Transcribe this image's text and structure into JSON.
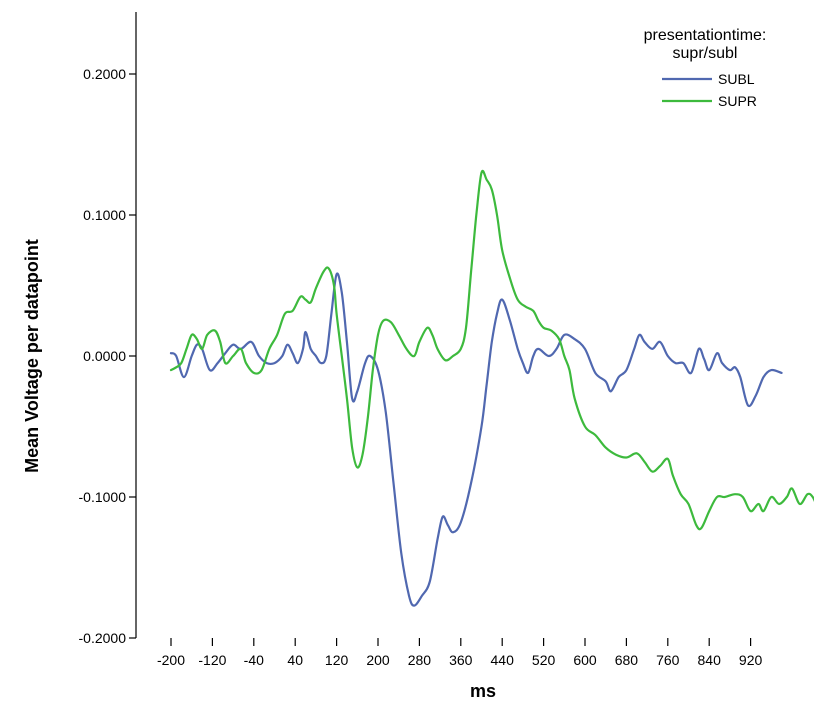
{
  "chart_data": {
    "type": "line",
    "xlabel": "ms",
    "ylabel": "Mean Voltage per datapoint",
    "xlim": [
      -200,
      1000
    ],
    "ylim": [
      -0.2,
      0.2
    ],
    "x_ticks": [
      "-200",
      "-120",
      "-40",
      "40",
      "120",
      "200",
      "280",
      "360",
      "440",
      "520",
      "600",
      "680",
      "760",
      "840",
      "920"
    ],
    "x_tick_values": [
      -200,
      -120,
      -40,
      40,
      120,
      200,
      280,
      360,
      440,
      520,
      600,
      680,
      760,
      840,
      920
    ],
    "y_ticks": [
      "-0.2000",
      "-0.1000",
      "0.0000",
      "0.1000",
      "0.2000"
    ],
    "y_tick_values": [
      -0.2,
      -0.1,
      0.0,
      0.1,
      0.2
    ],
    "grid": false,
    "legend": {
      "title": "presentationtime: supr/subl",
      "title_lines": [
        "presentationtime:",
        "supr/subl"
      ],
      "position": "top-right",
      "entries": [
        "SUBL",
        "SUPR"
      ]
    },
    "series": [
      {
        "name": "SUBL",
        "color": "#5068b0",
        "points": [
          [
            -200,
            0.002
          ],
          [
            -190,
            0.0
          ],
          [
            -175,
            -0.015
          ],
          [
            -160,
            0.0
          ],
          [
            -150,
            0.008
          ],
          [
            -140,
            0.005
          ],
          [
            -125,
            -0.01
          ],
          [
            -110,
            -0.005
          ],
          [
            -95,
            0.002
          ],
          [
            -80,
            0.008
          ],
          [
            -65,
            0.005
          ],
          [
            -45,
            0.01
          ],
          [
            -30,
            0.0
          ],
          [
            -15,
            -0.005
          ],
          [
            0,
            -0.005
          ],
          [
            15,
            0.0
          ],
          [
            25,
            0.008
          ],
          [
            35,
            0.002
          ],
          [
            45,
            -0.005
          ],
          [
            55,
            0.005
          ],
          [
            60,
            0.017
          ],
          [
            70,
            0.005
          ],
          [
            80,
            0.0
          ],
          [
            90,
            -0.005
          ],
          [
            100,
            0.0
          ],
          [
            110,
            0.03
          ],
          [
            120,
            0.058
          ],
          [
            130,
            0.045
          ],
          [
            140,
            0.01
          ],
          [
            150,
            -0.03
          ],
          [
            160,
            -0.025
          ],
          [
            175,
            -0.005
          ],
          [
            185,
            0.0
          ],
          [
            200,
            -0.01
          ],
          [
            215,
            -0.04
          ],
          [
            230,
            -0.09
          ],
          [
            245,
            -0.14
          ],
          [
            260,
            -0.17
          ],
          [
            270,
            -0.177
          ],
          [
            285,
            -0.17
          ],
          [
            300,
            -0.16
          ],
          [
            315,
            -0.13
          ],
          [
            325,
            -0.114
          ],
          [
            335,
            -0.12
          ],
          [
            345,
            -0.125
          ],
          [
            360,
            -0.118
          ],
          [
            380,
            -0.09
          ],
          [
            400,
            -0.05
          ],
          [
            410,
            -0.02
          ],
          [
            420,
            0.01
          ],
          [
            430,
            0.03
          ],
          [
            440,
            0.04
          ],
          [
            455,
            0.025
          ],
          [
            470,
            0.005
          ],
          [
            480,
            -0.005
          ],
          [
            490,
            -0.012
          ],
          [
            500,
            0.0
          ],
          [
            510,
            0.005
          ],
          [
            530,
            0.0
          ],
          [
            545,
            0.005
          ],
          [
            560,
            0.015
          ],
          [
            580,
            0.012
          ],
          [
            600,
            0.005
          ],
          [
            620,
            -0.012
          ],
          [
            640,
            -0.018
          ],
          [
            650,
            -0.025
          ],
          [
            665,
            -0.015
          ],
          [
            680,
            -0.01
          ],
          [
            695,
            0.005
          ],
          [
            705,
            0.015
          ],
          [
            715,
            0.01
          ],
          [
            730,
            0.005
          ],
          [
            745,
            0.01
          ],
          [
            760,
            0.0
          ],
          [
            775,
            -0.005
          ],
          [
            790,
            -0.005
          ],
          [
            805,
            -0.012
          ],
          [
            820,
            0.005
          ],
          [
            830,
            -0.002
          ],
          [
            840,
            -0.01
          ],
          [
            855,
            0.002
          ],
          [
            865,
            -0.005
          ],
          [
            880,
            -0.01
          ],
          [
            890,
            -0.008
          ],
          [
            900,
            -0.015
          ],
          [
            915,
            -0.035
          ],
          [
            930,
            -0.028
          ],
          [
            945,
            -0.015
          ],
          [
            960,
            -0.01
          ],
          [
            980,
            -0.012
          ]
        ]
      },
      {
        "name": "SUPR",
        "color": "#3dba3d",
        "points": [
          [
            -200,
            -0.01
          ],
          [
            -190,
            -0.008
          ],
          [
            -180,
            -0.005
          ],
          [
            -170,
            0.005
          ],
          [
            -160,
            0.015
          ],
          [
            -150,
            0.012
          ],
          [
            -140,
            0.005
          ],
          [
            -130,
            0.015
          ],
          [
            -115,
            0.018
          ],
          [
            -105,
            0.01
          ],
          [
            -95,
            -0.005
          ],
          [
            -80,
            0.0
          ],
          [
            -65,
            0.005
          ],
          [
            -55,
            -0.005
          ],
          [
            -40,
            -0.012
          ],
          [
            -25,
            -0.01
          ],
          [
            -10,
            0.005
          ],
          [
            5,
            0.015
          ],
          [
            20,
            0.03
          ],
          [
            35,
            0.032
          ],
          [
            50,
            0.042
          ],
          [
            60,
            0.04
          ],
          [
            70,
            0.038
          ],
          [
            80,
            0.048
          ],
          [
            95,
            0.06
          ],
          [
            105,
            0.062
          ],
          [
            115,
            0.05
          ],
          [
            120,
            0.03
          ],
          [
            130,
            0.0
          ],
          [
            140,
            -0.03
          ],
          [
            150,
            -0.065
          ],
          [
            160,
            -0.079
          ],
          [
            170,
            -0.07
          ],
          [
            180,
            -0.045
          ],
          [
            190,
            -0.01
          ],
          [
            200,
            0.015
          ],
          [
            210,
            0.025
          ],
          [
            225,
            0.024
          ],
          [
            240,
            0.015
          ],
          [
            255,
            0.005
          ],
          [
            270,
            0.0
          ],
          [
            280,
            0.01
          ],
          [
            295,
            0.02
          ],
          [
            305,
            0.015
          ],
          [
            315,
            0.005
          ],
          [
            330,
            -0.003
          ],
          [
            345,
            0.0
          ],
          [
            360,
            0.005
          ],
          [
            370,
            0.02
          ],
          [
            380,
            0.06
          ],
          [
            390,
            0.1
          ],
          [
            400,
            0.13
          ],
          [
            410,
            0.125
          ],
          [
            420,
            0.118
          ],
          [
            430,
            0.1
          ],
          [
            440,
            0.075
          ],
          [
            455,
            0.055
          ],
          [
            470,
            0.04
          ],
          [
            485,
            0.035
          ],
          [
            500,
            0.032
          ],
          [
            510,
            0.025
          ],
          [
            520,
            0.02
          ],
          [
            535,
            0.018
          ],
          [
            550,
            0.012
          ],
          [
            560,
            0.0
          ],
          [
            570,
            -0.01
          ],
          [
            580,
            -0.03
          ],
          [
            600,
            -0.05
          ],
          [
            620,
            -0.056
          ],
          [
            640,
            -0.065
          ],
          [
            660,
            -0.07
          ],
          [
            680,
            -0.072
          ],
          [
            700,
            -0.069
          ],
          [
            715,
            -0.075
          ],
          [
            730,
            -0.082
          ],
          [
            745,
            -0.078
          ],
          [
            760,
            -0.073
          ],
          [
            770,
            -0.085
          ],
          [
            785,
            -0.098
          ],
          [
            800,
            -0.105
          ],
          [
            815,
            -0.12
          ],
          [
            825,
            -0.122
          ],
          [
            840,
            -0.11
          ],
          [
            855,
            -0.1
          ],
          [
            870,
            -0.1
          ],
          [
            890,
            -0.098
          ],
          [
            905,
            -0.1
          ],
          [
            920,
            -0.11
          ],
          [
            935,
            -0.105
          ],
          [
            945,
            -0.11
          ],
          [
            960,
            -0.1
          ],
          [
            975,
            -0.105
          ],
          [
            990,
            -0.1
          ],
          [
            1000,
            -0.094
          ],
          [
            1015,
            -0.105
          ],
          [
            1030,
            -0.098
          ],
          [
            1040,
            -0.1
          ],
          [
            1050,
            -0.108
          ]
        ]
      }
    ]
  }
}
